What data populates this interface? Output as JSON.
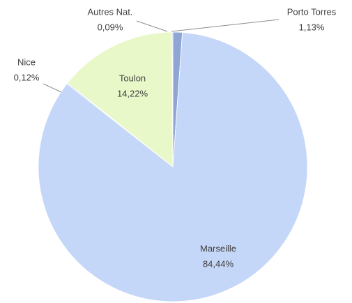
{
  "chart_data": {
    "type": "pie",
    "categories": [
      "Porto Torres",
      "Marseille",
      "Nice",
      "Toulon",
      "Autres Nat."
    ],
    "values": [
      1.13,
      84.44,
      0.12,
      14.22,
      0.09
    ],
    "value_labels": [
      "1,13%",
      "84,44%",
      "0,12%",
      "14,22%",
      "0,09%"
    ],
    "colors": [
      "#8fa6d4",
      "#c5d7f8",
      "#b7c9ea",
      "#e9f8c8",
      "#a9b4c8"
    ]
  }
}
